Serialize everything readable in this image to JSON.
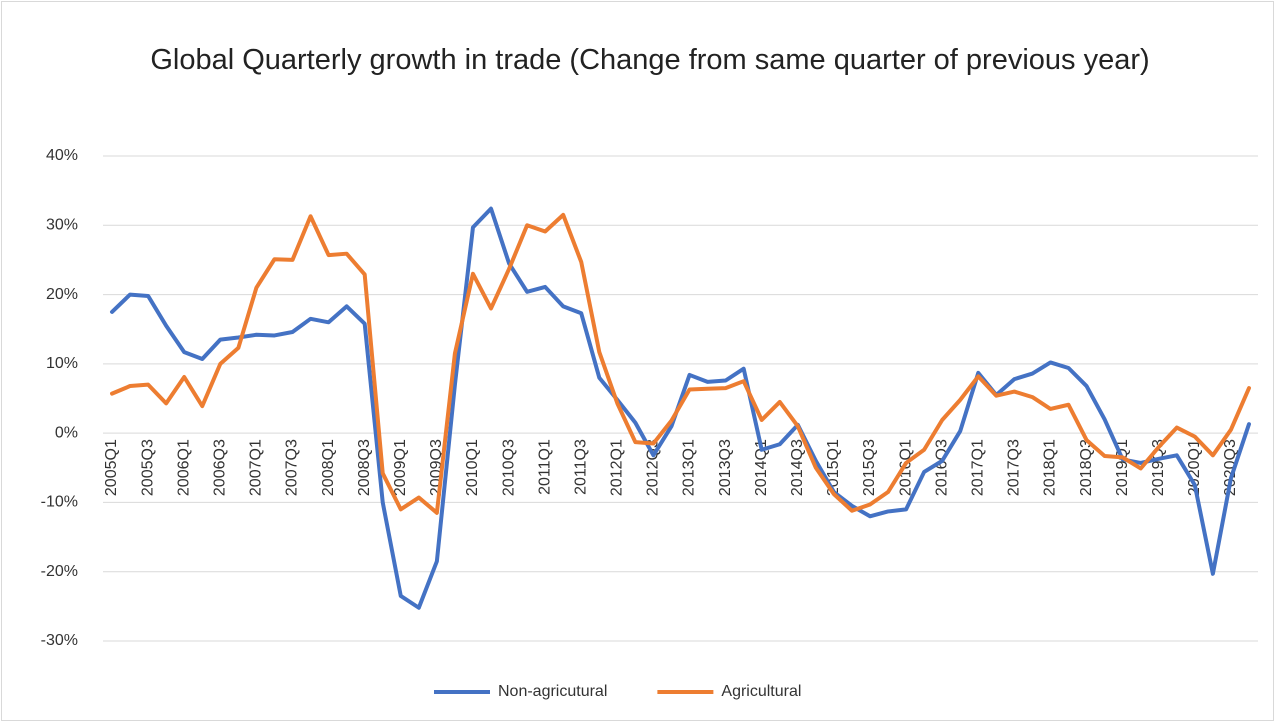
{
  "chart_data": {
    "type": "line",
    "title": "Global Quarterly growth in trade (Change from same quarter of previous year)",
    "categories": [
      "2005Q1",
      null,
      "2005Q3",
      null,
      "2006Q1",
      null,
      "2006Q3",
      null,
      "2007Q1",
      null,
      "2007Q3",
      null,
      "2008Q1",
      null,
      "2008Q3",
      null,
      "2009Q1",
      null,
      "2009Q3",
      null,
      "2010Q1",
      null,
      "2010Q3",
      null,
      "2011Q1",
      null,
      "2011Q3",
      null,
      "2012Q1",
      null,
      "2012Q3",
      null,
      "2013Q1",
      null,
      "2013Q3",
      null,
      "2014Q1",
      null,
      "2014Q3",
      null,
      "2015Q1",
      null,
      "2015Q3",
      null,
      "2016Q1",
      null,
      "2016Q3",
      null,
      "2017Q1",
      null,
      "2017Q3",
      null,
      "2018Q1",
      null,
      "2018Q3",
      null,
      "2019Q1",
      null,
      "2019Q3",
      null,
      "2020Q1",
      null,
      "2020Q3",
      null
    ],
    "series": [
      {
        "name": "Non-agricutural",
        "color": "#4472c4",
        "values": [
          17.5,
          20,
          19.8,
          15.5,
          11.7,
          10.7,
          13.5,
          13.8,
          14.2,
          14.1,
          14.6,
          16.5,
          16,
          18.3,
          15.8,
          -10,
          -23.5,
          -25.2,
          -18.5,
          7,
          29.7,
          32.4,
          24.5,
          20.4,
          21.1,
          18.3,
          17.3,
          8,
          4.8,
          1.5,
          -3.2,
          1,
          8.4,
          7.4,
          7.6,
          9.3,
          -2.4,
          -1.6,
          1.2,
          -4,
          -8.5,
          -10.5,
          -12,
          -11.3,
          -11,
          -5.6,
          -4,
          0.3,
          8.7,
          5.5,
          7.8,
          8.6,
          10.2,
          9.4,
          6.8,
          2,
          -3.8,
          -4.3,
          -3.7,
          -3.2,
          -7.5,
          -20.3,
          -6.5,
          1.3
        ]
      },
      {
        "name": "Agricultural",
        "color": "#ed7d31",
        "values": [
          5.7,
          6.8,
          7,
          4.3,
          8.1,
          3.9,
          10,
          12.3,
          21,
          25.1,
          25,
          31.3,
          25.7,
          25.9,
          22.9,
          -5.8,
          -11,
          -9.3,
          -11.5,
          11.5,
          23,
          18,
          23.7,
          30,
          29.1,
          31.5,
          24.7,
          11.7,
          4.3,
          -1.3,
          -1.5,
          1.8,
          6.3,
          6.4,
          6.5,
          7.5,
          1.9,
          4.5,
          1,
          -5,
          -8.8,
          -11.2,
          -10.3,
          -8.5,
          -4.3,
          -2.4,
          1.9,
          4.8,
          8.2,
          5.4,
          6,
          5.2,
          3.5,
          4.1,
          -1,
          -3.3,
          -3.5,
          -5.1,
          -2,
          0.8,
          -0.5,
          -3.2,
          0.5,
          6.5
        ]
      }
    ],
    "ylim": [
      -30,
      40
    ],
    "yticks": [
      {
        "value": -30,
        "label": "-30%"
      },
      {
        "value": -20,
        "label": "-20%"
      },
      {
        "value": -10,
        "label": "-10%"
      },
      {
        "value": 0,
        "label": "0%"
      },
      {
        "value": 10,
        "label": "10%"
      },
      {
        "value": 20,
        "label": "20%"
      },
      {
        "value": 30,
        "label": "30%"
      },
      {
        "value": 40,
        "label": "40%"
      }
    ],
    "grid": true,
    "legend": "bottom"
  }
}
